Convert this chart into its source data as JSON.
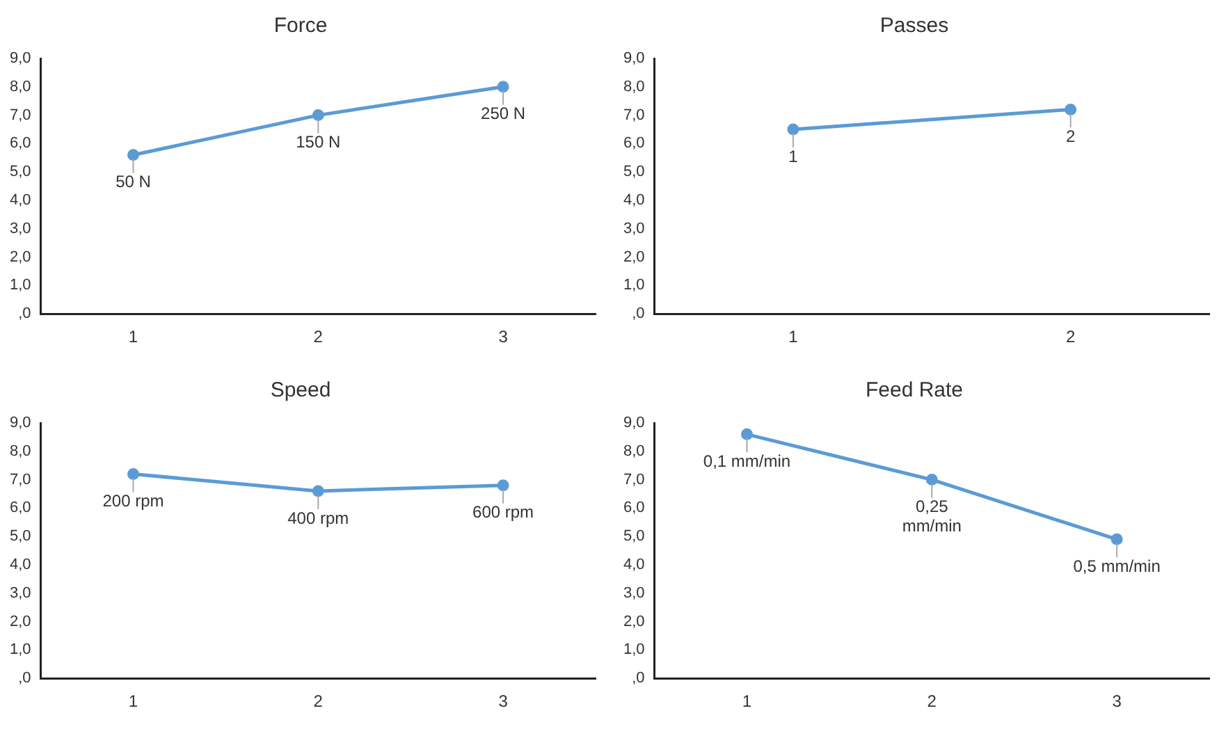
{
  "chart_data": [
    {
      "type": "line",
      "title": "Force",
      "categories": [
        "1",
        "2",
        "3"
      ],
      "series": [
        {
          "color": "#5b9bd5",
          "values": [
            5.6,
            7.0,
            8.0
          ]
        }
      ],
      "ylim": [
        0,
        9
      ],
      "yticks": [
        {
          "value": 0,
          "label": ",0"
        },
        {
          "value": 1,
          "label": "1,0"
        },
        {
          "value": 2,
          "label": "2,0"
        },
        {
          "value": 3,
          "label": "3,0"
        },
        {
          "value": 4,
          "label": "4,0"
        },
        {
          "value": 5,
          "label": "5,0"
        },
        {
          "value": 6,
          "label": "6,0"
        },
        {
          "value": 7,
          "label": "7,0"
        },
        {
          "value": 8,
          "label": "8,0"
        },
        {
          "value": 9,
          "label": "9,0"
        }
      ],
      "grid": false,
      "legend": false,
      "marker": "circle",
      "line_style": "solid",
      "annotations": [
        {
          "text": "50 N",
          "x": "1",
          "y": 5.6
        },
        {
          "text": "150 N",
          "x": "2",
          "y": 7.0
        },
        {
          "text": "250 N",
          "x": "3",
          "y": 8.0
        }
      ]
    },
    {
      "type": "line",
      "title": "Passes",
      "categories": [
        "1",
        "2"
      ],
      "series": [
        {
          "color": "#5b9bd5",
          "values": [
            6.5,
            7.2
          ]
        }
      ],
      "ylim": [
        0,
        9
      ],
      "yticks": [
        {
          "value": 0,
          "label": ",0"
        },
        {
          "value": 1,
          "label": "1,0"
        },
        {
          "value": 2,
          "label": "2,0"
        },
        {
          "value": 3,
          "label": "3,0"
        },
        {
          "value": 4,
          "label": "4,0"
        },
        {
          "value": 5,
          "label": "5,0"
        },
        {
          "value": 6,
          "label": "6,0"
        },
        {
          "value": 7,
          "label": "7,0"
        },
        {
          "value": 8,
          "label": "8,0"
        },
        {
          "value": 9,
          "label": "9,0"
        }
      ],
      "grid": false,
      "legend": false,
      "marker": "circle",
      "line_style": "solid",
      "annotations": [
        {
          "text": "1",
          "x": "1",
          "y": 6.5
        },
        {
          "text": "2",
          "x": "2",
          "y": 7.2
        }
      ]
    },
    {
      "type": "line",
      "title": "Speed",
      "categories": [
        "1",
        "2",
        "3"
      ],
      "series": [
        {
          "color": "#5b9bd5",
          "values": [
            7.2,
            6.6,
            6.8
          ]
        }
      ],
      "ylim": [
        0,
        9
      ],
      "yticks": [
        {
          "value": 0,
          "label": ",0"
        },
        {
          "value": 1,
          "label": "1,0"
        },
        {
          "value": 2,
          "label": "2,0"
        },
        {
          "value": 3,
          "label": "3,0"
        },
        {
          "value": 4,
          "label": "4,0"
        },
        {
          "value": 5,
          "label": "5,0"
        },
        {
          "value": 6,
          "label": "6,0"
        },
        {
          "value": 7,
          "label": "7,0"
        },
        {
          "value": 8,
          "label": "8,0"
        },
        {
          "value": 9,
          "label": "9,0"
        }
      ],
      "grid": false,
      "legend": false,
      "marker": "circle",
      "line_style": "solid",
      "annotations": [
        {
          "text": "200 rpm",
          "x": "1",
          "y": 7.2
        },
        {
          "text": "400 rpm",
          "x": "2",
          "y": 6.6
        },
        {
          "text": "600 rpm",
          "x": "3",
          "y": 6.8
        }
      ]
    },
    {
      "type": "line",
      "title": "Feed Rate",
      "categories": [
        "1",
        "2",
        "3"
      ],
      "series": [
        {
          "color": "#5b9bd5",
          "values": [
            8.6,
            7.0,
            4.9
          ]
        }
      ],
      "ylim": [
        0,
        9
      ],
      "yticks": [
        {
          "value": 0,
          "label": ",0"
        },
        {
          "value": 1,
          "label": "1,0"
        },
        {
          "value": 2,
          "label": "2,0"
        },
        {
          "value": 3,
          "label": "3,0"
        },
        {
          "value": 4,
          "label": "4,0"
        },
        {
          "value": 5,
          "label": "5,0"
        },
        {
          "value": 6,
          "label": "6,0"
        },
        {
          "value": 7,
          "label": "7,0"
        },
        {
          "value": 8,
          "label": "8,0"
        },
        {
          "value": 9,
          "label": "9,0"
        }
      ],
      "grid": false,
      "legend": false,
      "marker": "circle",
      "line_style": "solid",
      "annotations": [
        {
          "text": "0,1 mm/min",
          "x": "1",
          "y": 8.6
        },
        {
          "text": "0,25 mm/min",
          "x": "2",
          "y": 7.0
        },
        {
          "text": "0,5 mm/min",
          "x": "3",
          "y": 4.9
        }
      ]
    }
  ]
}
